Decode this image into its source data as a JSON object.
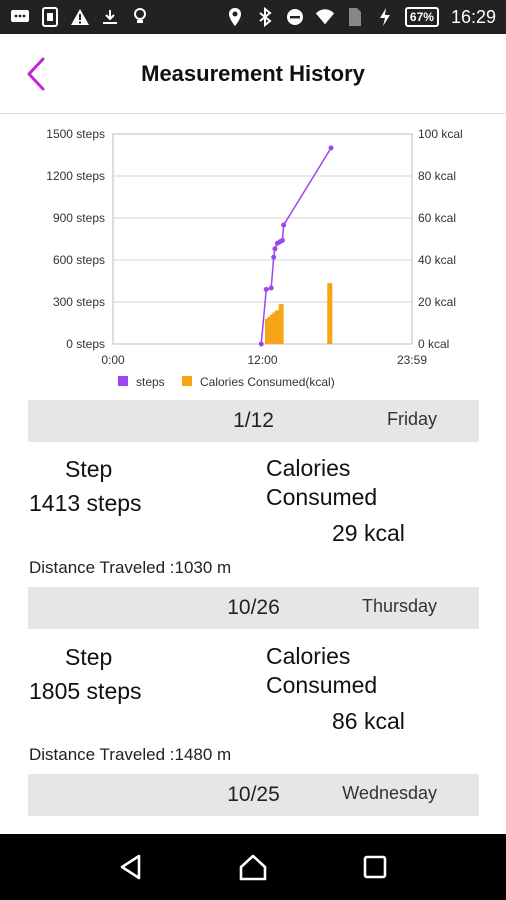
{
  "status_bar": {
    "battery_label": "67",
    "time": "16:29",
    "icons": [
      "message-icon",
      "sim-icon",
      "warning-icon",
      "download-icon",
      "bulb-icon",
      "location-icon",
      "bluetooth-icon",
      "dnd-icon",
      "wifi-icon",
      "sim-card-icon",
      "charging-icon"
    ]
  },
  "app_bar": {
    "title": "Measurement History",
    "back_icon": "chevron-left-icon",
    "accent_color": "#c026d3"
  },
  "chart_data": {
    "type": "line",
    "x_tick_labels": [
      "0:00",
      "12:00",
      "23:59"
    ],
    "x_range_hours": [
      0,
      24
    ],
    "y_left_ticks": [
      "1500 steps",
      "1200 steps",
      "900 steps",
      "600 steps",
      "300 steps",
      "0 steps"
    ],
    "y_left_range": [
      0,
      1500
    ],
    "y_right_ticks": [
      "100 kcal",
      "80 kcal",
      "60 kcal",
      "40 kcal",
      "20 kcal",
      "0 kcal"
    ],
    "y_right_range": [
      0,
      100
    ],
    "grid": true,
    "legend_placement": "bottom",
    "series": [
      {
        "name": "steps",
        "type": "line",
        "axis": "left",
        "color": "#9b47f0",
        "x": [
          11.9,
          12.3,
          12.7,
          12.9,
          13.0,
          13.2,
          13.4,
          13.6,
          13.7,
          17.5
        ],
        "y": [
          0,
          390,
          400,
          620,
          680,
          720,
          730,
          740,
          850,
          1400
        ]
      },
      {
        "name": "Calories Consumed(kcal)",
        "type": "bar",
        "axis": "right",
        "color": "#f5a516",
        "x": [
          12.4,
          12.6,
          12.8,
          13.0,
          13.2,
          13.5,
          17.4
        ],
        "y": [
          12,
          13,
          14,
          15,
          16,
          19,
          29
        ]
      }
    ]
  },
  "days": [
    {
      "date": "1/12",
      "weekday": "Friday",
      "step_label": "Step",
      "steps": "1413 steps",
      "calories_label": "Calories Consumed",
      "calories": "29 kcal",
      "distance": "Distance Traveled :1030 m"
    },
    {
      "date": "10/26",
      "weekday": "Thursday",
      "step_label": "Step",
      "steps": "1805 steps",
      "calories_label": "Calories Consumed",
      "calories": "86 kcal",
      "distance": "Distance Traveled :1480 m"
    },
    {
      "date": "10/25",
      "weekday": "Wednesday"
    }
  ],
  "nav_bar": {
    "icons": [
      "back-triangle-icon",
      "home-icon",
      "recents-square-icon"
    ]
  }
}
